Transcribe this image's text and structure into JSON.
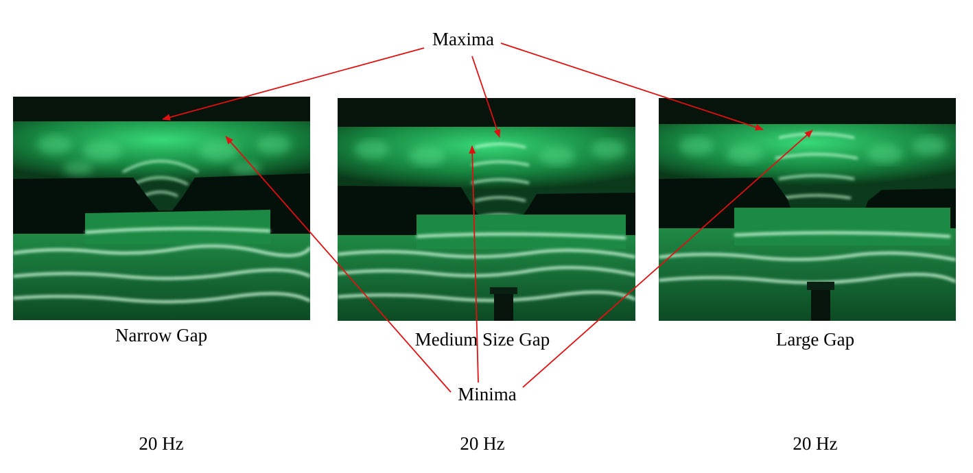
{
  "annotations": {
    "maxima": "Maxima",
    "minima": "Minima"
  },
  "panels": [
    {
      "caption": "Narrow Gap",
      "frequency": "20 Hz"
    },
    {
      "caption": "Medium Size Gap",
      "frequency": "20 Hz"
    },
    {
      "caption": "Large Gap",
      "frequency": "20 Hz"
    }
  ],
  "colors": {
    "wave_glow": "#39e07a",
    "wave_bright": "#c8ffd8",
    "barrier": "#04100a",
    "arrow": "#e01010"
  }
}
